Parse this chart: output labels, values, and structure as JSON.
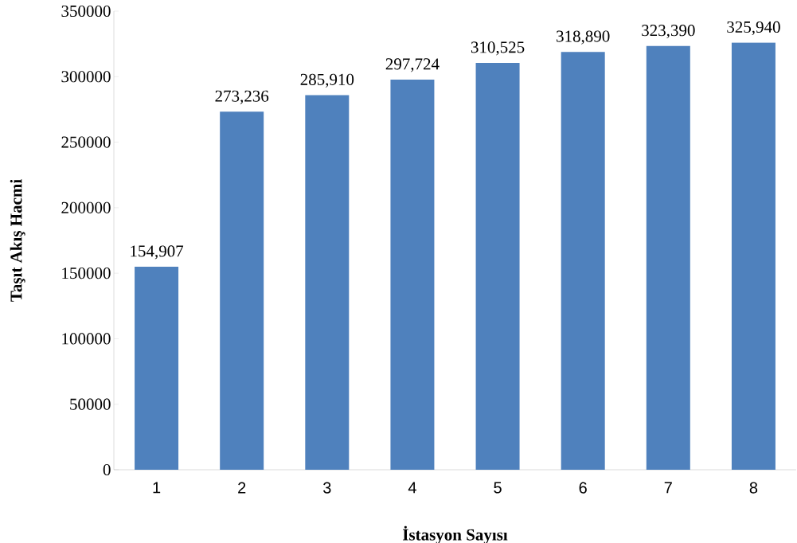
{
  "chart_data": {
    "type": "bar",
    "xlabel": "İstasyon Sayısı",
    "ylabel": "Taşıt Akış Hacmi",
    "categories": [
      "1",
      "2",
      "3",
      "4",
      "5",
      "6",
      "7",
      "8"
    ],
    "values": [
      154907,
      273236,
      285910,
      297724,
      310525,
      318890,
      323390,
      325940
    ],
    "value_labels": [
      "154,907",
      "273,236",
      "285,910",
      "297,724",
      "310,525",
      "318,890",
      "323,390",
      "325,940"
    ],
    "color": "#4f81bd",
    "ylim": [
      0,
      350000
    ],
    "yticks": [
      0,
      50000,
      100000,
      150000,
      200000,
      250000,
      300000,
      350000
    ],
    "grid": false
  }
}
